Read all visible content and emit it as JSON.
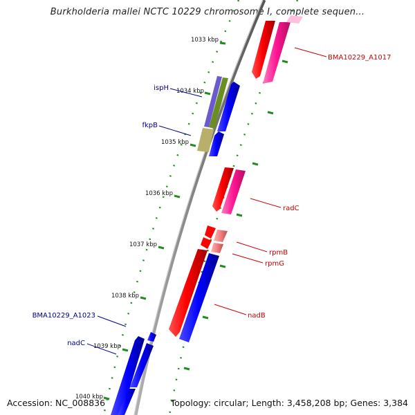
{
  "title": "Burkholderia mallei NCTC 10229 chromosome I, complete sequen...",
  "accession": "Accession: NC_008836",
  "topology": "Topology: circular; Length: 3,458,208 bp; Genes: 3,384",
  "scale_labels": [
    "1033 kbp",
    "1034 kbp",
    "1035 kbp",
    "1036 kbp",
    "1037 kbp",
    "1038 kbp",
    "1039 kbp",
    "1040 kbp"
  ],
  "gene_labels": {
    "ispH": "ispH",
    "fkpB": "fkpB",
    "bma_a1017": "BMA10229_A1017",
    "radC": "radC",
    "rpmB": "rpmB",
    "rpmG": "rpmG",
    "nadB": "nadB",
    "bma_a1023": "BMA10229_A1023",
    "nadC": "nadC"
  },
  "colors": {
    "backbone": "#808080",
    "forward_cds": "#ff0000",
    "forward_feature": "#ff1493",
    "reverse_cds": "#0000ff",
    "ticks": "#228b22",
    "label_forward": "#cc0000",
    "label_reverse": "#00008b",
    "ispH_feature": "#6a5acd",
    "ispH_green": "#6b8e23",
    "fkpB_feature": "#b8b06a"
  }
}
